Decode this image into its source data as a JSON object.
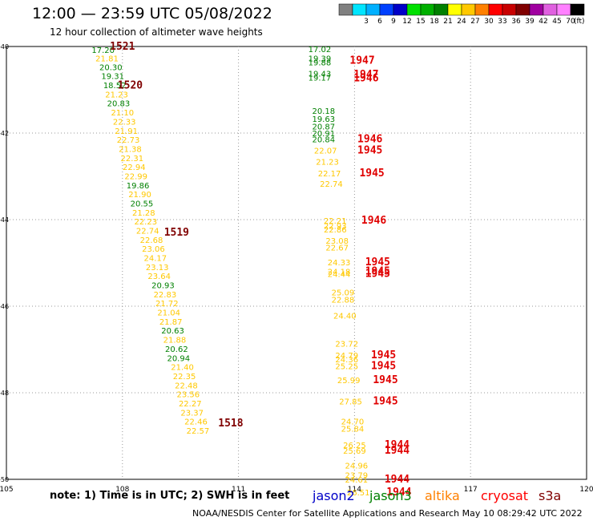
{
  "header": {
    "title": "12:00 — 23:59 UTC 05/08/2022",
    "subtitle": "12 hour collection of altimeter wave heights"
  },
  "footer": {
    "note": "note:  1) Time is in UTC;  2) SWH is in feet",
    "credit": "NOAA/NESDIS Center for Satellite Applications and Research     May 10 08:29:42 UTC 2022"
  },
  "legend": {
    "units": "(ft)",
    "bins": [
      {
        "label": "",
        "color": "#808080"
      },
      {
        "label": "3",
        "color": "#00e5ff"
      },
      {
        "label": "6",
        "color": "#00b0ff"
      },
      {
        "label": "9",
        "color": "#0040ff"
      },
      {
        "label": "12",
        "color": "#0000c8"
      },
      {
        "label": "15",
        "color": "#00e000"
      },
      {
        "label": "18",
        "color": "#00b000"
      },
      {
        "label": "21",
        "color": "#008000"
      },
      {
        "label": "24",
        "color": "#ffff00"
      },
      {
        "label": "27",
        "color": "#ffc800"
      },
      {
        "label": "30",
        "color": "#ff8000"
      },
      {
        "label": "33",
        "color": "#ff0000"
      },
      {
        "label": "36",
        "color": "#c80000"
      },
      {
        "label": "39",
        "color": "#800000"
      },
      {
        "label": "42",
        "color": "#a000a0"
      },
      {
        "label": "45",
        "color": "#e060e0"
      },
      {
        "label": "70",
        "color": "#ff80ff"
      },
      {
        "label": "",
        "color": "#000000"
      }
    ]
  },
  "satellites": [
    {
      "name": "jason2",
      "color": "#0000c8"
    },
    {
      "name": "jason3",
      "color": "#008000"
    },
    {
      "name": "altika",
      "color": "#ff8000"
    },
    {
      "name": "cryosat",
      "color": "#ff0000"
    },
    {
      "name": "s3a",
      "color": "#800000"
    }
  ],
  "chart_data": {
    "type": "scatter",
    "xlim": [
      105,
      120
    ],
    "ylim": [
      -50,
      -40
    ],
    "x_ticks": [
      "105",
      "108",
      "111",
      "114",
      "117",
      "120"
    ],
    "y_ticks": [
      "-40",
      "-42",
      "-44",
      "-46",
      "-48",
      "-50"
    ],
    "grid": "dotted",
    "colors": {
      "g": "#008000",
      "y": "#ffc800",
      "r": "#e00000",
      "m": "#800000"
    },
    "points": [
      {
        "x": 107.5,
        "y": -40.07,
        "label": "17.20",
        "c": "g"
      },
      {
        "x": 107.6,
        "y": -40.27,
        "label": "21.81",
        "c": "y"
      },
      {
        "x": 107.7,
        "y": -40.47,
        "label": "20.30",
        "c": "g"
      },
      {
        "x": 107.75,
        "y": -40.68,
        "label": "19.31",
        "c": "g"
      },
      {
        "x": 107.8,
        "y": -40.89,
        "label": "18.52",
        "c": "g"
      },
      {
        "x": 107.85,
        "y": -41.1,
        "label": "21.23",
        "c": "y"
      },
      {
        "x": 107.9,
        "y": -41.31,
        "label": "20.83",
        "c": "g"
      },
      {
        "x": 108.0,
        "y": -41.52,
        "label": "21.10",
        "c": "y"
      },
      {
        "x": 108.05,
        "y": -41.73,
        "label": "22.33",
        "c": "y"
      },
      {
        "x": 108.1,
        "y": -41.94,
        "label": "21.91",
        "c": "y"
      },
      {
        "x": 108.15,
        "y": -42.15,
        "label": "22.73",
        "c": "y"
      },
      {
        "x": 108.2,
        "y": -42.36,
        "label": "21.38",
        "c": "y"
      },
      {
        "x": 108.25,
        "y": -42.57,
        "label": "22.31",
        "c": "y"
      },
      {
        "x": 108.3,
        "y": -42.78,
        "label": "22.94",
        "c": "y"
      },
      {
        "x": 108.35,
        "y": -42.99,
        "label": "22.99",
        "c": "y"
      },
      {
        "x": 108.4,
        "y": -43.2,
        "label": "19.86",
        "c": "g"
      },
      {
        "x": 108.45,
        "y": -43.41,
        "label": "21.90",
        "c": "y"
      },
      {
        "x": 108.5,
        "y": -43.62,
        "label": "20.55",
        "c": "g"
      },
      {
        "x": 108.55,
        "y": -43.83,
        "label": "21.28",
        "c": "y"
      },
      {
        "x": 108.6,
        "y": -44.04,
        "label": "22.23",
        "c": "y"
      },
      {
        "x": 108.65,
        "y": -44.25,
        "label": "22.74",
        "c": "y"
      },
      {
        "x": 108.75,
        "y": -44.46,
        "label": "22.68",
        "c": "y"
      },
      {
        "x": 108.8,
        "y": -44.67,
        "label": "23.06",
        "c": "y"
      },
      {
        "x": 108.85,
        "y": -44.88,
        "label": "24.17",
        "c": "y"
      },
      {
        "x": 108.9,
        "y": -45.09,
        "label": "23.13",
        "c": "y"
      },
      {
        "x": 108.95,
        "y": -45.3,
        "label": "23.64",
        "c": "y"
      },
      {
        "x": 109.05,
        "y": -45.51,
        "label": "20.93",
        "c": "g"
      },
      {
        "x": 109.1,
        "y": -45.72,
        "label": "22.83",
        "c": "y"
      },
      {
        "x": 109.15,
        "y": -45.93,
        "label": "21.72",
        "c": "y"
      },
      {
        "x": 109.2,
        "y": -46.14,
        "label": "21.04",
        "c": "y"
      },
      {
        "x": 109.25,
        "y": -46.35,
        "label": "21.87",
        "c": "y"
      },
      {
        "x": 109.3,
        "y": -46.56,
        "label": "20.63",
        "c": "g"
      },
      {
        "x": 109.35,
        "y": -46.77,
        "label": "21.88",
        "c": "y"
      },
      {
        "x": 109.4,
        "y": -46.98,
        "label": "20.62",
        "c": "g"
      },
      {
        "x": 109.45,
        "y": -47.19,
        "label": "20.94",
        "c": "g"
      },
      {
        "x": 109.55,
        "y": -47.4,
        "label": "21.40",
        "c": "y"
      },
      {
        "x": 109.6,
        "y": -47.61,
        "label": "22.35",
        "c": "y"
      },
      {
        "x": 109.65,
        "y": -47.82,
        "label": "22.48",
        "c": "y"
      },
      {
        "x": 109.7,
        "y": -48.03,
        "label": "23.56",
        "c": "y"
      },
      {
        "x": 109.75,
        "y": -48.24,
        "label": "22.27",
        "c": "y"
      },
      {
        "x": 109.8,
        "y": -48.45,
        "label": "23.37",
        "c": "y"
      },
      {
        "x": 109.9,
        "y": -48.66,
        "label": "22.46",
        "c": "y"
      },
      {
        "x": 109.95,
        "y": -48.87,
        "label": "22.57",
        "c": "y"
      },
      {
        "x": 108.0,
        "y": -40.0,
        "label": "1521",
        "c": "m",
        "time": true
      },
      {
        "x": 108.2,
        "y": -40.9,
        "label": "1520",
        "c": "m",
        "time": true
      },
      {
        "x": 109.4,
        "y": -44.3,
        "label": "1519",
        "c": "m",
        "time": true
      },
      {
        "x": 110.8,
        "y": -48.7,
        "label": "1518",
        "c": "m",
        "time": true
      },
      {
        "x": 113.1,
        "y": -40.06,
        "label": "17.02",
        "c": "g"
      },
      {
        "x": 113.1,
        "y": -40.27,
        "label": "19.39",
        "c": "g"
      },
      {
        "x": 113.1,
        "y": -40.36,
        "label": "19.88",
        "c": "g"
      },
      {
        "x": 113.1,
        "y": -40.62,
        "label": "19.43",
        "c": "g"
      },
      {
        "x": 113.1,
        "y": -40.71,
        "label": "19.17",
        "c": "g"
      },
      {
        "x": 113.2,
        "y": -41.48,
        "label": "20.18",
        "c": "g"
      },
      {
        "x": 113.2,
        "y": -41.67,
        "label": "19.63",
        "c": "g"
      },
      {
        "x": 113.2,
        "y": -41.84,
        "label": "20.87",
        "c": "g"
      },
      {
        "x": 113.2,
        "y": -42.0,
        "label": "20.91",
        "c": "g"
      },
      {
        "x": 113.2,
        "y": -42.14,
        "label": "20.84",
        "c": "g"
      },
      {
        "x": 113.25,
        "y": -42.4,
        "label": "22.07",
        "c": "y"
      },
      {
        "x": 113.3,
        "y": -42.66,
        "label": "21.23",
        "c": "y"
      },
      {
        "x": 113.35,
        "y": -42.93,
        "label": "22.17",
        "c": "y"
      },
      {
        "x": 113.4,
        "y": -43.17,
        "label": "22.74",
        "c": "y"
      },
      {
        "x": 113.5,
        "y": -44.02,
        "label": "22.21",
        "c": "y"
      },
      {
        "x": 113.5,
        "y": -44.14,
        "label": "22.93",
        "c": "y"
      },
      {
        "x": 113.5,
        "y": -44.22,
        "label": "22.86",
        "c": "y"
      },
      {
        "x": 113.55,
        "y": -44.48,
        "label": "23.08",
        "c": "y"
      },
      {
        "x": 113.55,
        "y": -44.64,
        "label": "22.67",
        "c": "y"
      },
      {
        "x": 113.6,
        "y": -44.98,
        "label": "24.33",
        "c": "y"
      },
      {
        "x": 113.6,
        "y": -45.19,
        "label": "24.18",
        "c": "y"
      },
      {
        "x": 113.6,
        "y": -45.25,
        "label": "24.44",
        "c": "y"
      },
      {
        "x": 113.7,
        "y": -45.68,
        "label": "25.09",
        "c": "y"
      },
      {
        "x": 113.7,
        "y": -45.84,
        "label": "22.88",
        "c": "y"
      },
      {
        "x": 113.75,
        "y": -46.21,
        "label": "24.40",
        "c": "y"
      },
      {
        "x": 113.8,
        "y": -46.86,
        "label": "23.72",
        "c": "y"
      },
      {
        "x": 113.8,
        "y": -47.13,
        "label": "24.79",
        "c": "y"
      },
      {
        "x": 113.8,
        "y": -47.22,
        "label": "24.36",
        "c": "y"
      },
      {
        "x": 113.8,
        "y": -47.38,
        "label": "25.25",
        "c": "y"
      },
      {
        "x": 113.85,
        "y": -47.7,
        "label": "25.99",
        "c": "y"
      },
      {
        "x": 113.9,
        "y": -48.19,
        "label": "27.85",
        "c": "y"
      },
      {
        "x": 113.95,
        "y": -48.66,
        "label": "24.70",
        "c": "y"
      },
      {
        "x": 113.95,
        "y": -48.82,
        "label": "25.84",
        "c": "y"
      },
      {
        "x": 114.0,
        "y": -49.2,
        "label": "26.25",
        "c": "y"
      },
      {
        "x": 114.0,
        "y": -49.33,
        "label": "25.69",
        "c": "y"
      },
      {
        "x": 114.05,
        "y": -49.68,
        "label": "24.96",
        "c": "y"
      },
      {
        "x": 114.05,
        "y": -49.9,
        "label": "23.79",
        "c": "y"
      },
      {
        "x": 114.05,
        "y": -50.0,
        "label": "24.61",
        "c": "y"
      },
      {
        "x": 114.1,
        "y": -50.3,
        "label": "26.51",
        "c": "y"
      },
      {
        "x": 114.2,
        "y": -40.32,
        "label": "1947",
        "c": "r",
        "time": true
      },
      {
        "x": 114.3,
        "y": -40.65,
        "label": "1947",
        "c": "r",
        "time": true
      },
      {
        "x": 114.3,
        "y": -40.73,
        "label": "1946",
        "c": "r",
        "time": true
      },
      {
        "x": 114.4,
        "y": -42.14,
        "label": "1946",
        "c": "r",
        "time": true
      },
      {
        "x": 114.4,
        "y": -42.4,
        "label": "1945",
        "c": "r",
        "time": true
      },
      {
        "x": 114.45,
        "y": -42.93,
        "label": "1945",
        "c": "r",
        "time": true
      },
      {
        "x": 114.5,
        "y": -44.02,
        "label": "1946",
        "c": "r",
        "time": true
      },
      {
        "x": 114.6,
        "y": -44.98,
        "label": "1945",
        "c": "r",
        "time": true
      },
      {
        "x": 114.6,
        "y": -45.19,
        "label": "1945",
        "c": "r",
        "time": true
      },
      {
        "x": 114.6,
        "y": -45.25,
        "label": "1945",
        "c": "r",
        "time": true
      },
      {
        "x": 114.75,
        "y": -47.13,
        "label": "1945",
        "c": "r",
        "time": true
      },
      {
        "x": 114.75,
        "y": -47.38,
        "label": "1945",
        "c": "r",
        "time": true
      },
      {
        "x": 114.8,
        "y": -47.7,
        "label": "1945",
        "c": "r",
        "time": true
      },
      {
        "x": 114.8,
        "y": -48.19,
        "label": "1945",
        "c": "r",
        "time": true
      },
      {
        "x": 115.1,
        "y": -49.2,
        "label": "1944",
        "c": "r",
        "time": true
      },
      {
        "x": 115.1,
        "y": -49.33,
        "label": "1944",
        "c": "r",
        "time": true
      },
      {
        "x": 115.1,
        "y": -50.0,
        "label": "1944",
        "c": "r",
        "time": true
      },
      {
        "x": 115.15,
        "y": -50.3,
        "label": "1944",
        "c": "r",
        "time": true
      }
    ]
  }
}
